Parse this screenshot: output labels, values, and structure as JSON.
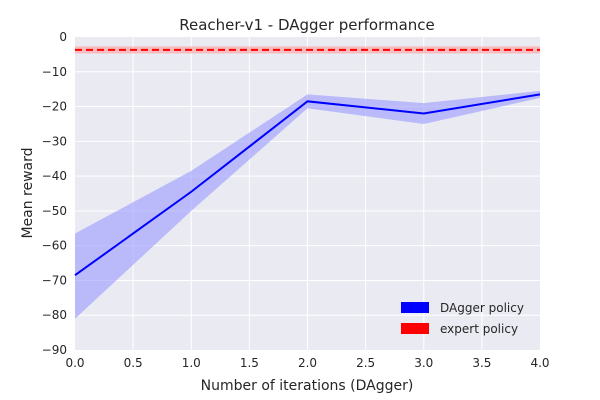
{
  "chart_data": {
    "type": "line",
    "title": "Reacher-v1 - DAgger performance",
    "xlabel": "Number of iterations (DAgger)",
    "ylabel": "Mean reward",
    "xlim": [
      0,
      4
    ],
    "ylim": [
      -90,
      0
    ],
    "xticks": [
      "0.0",
      "0.5",
      "1.0",
      "1.5",
      "2.0",
      "2.5",
      "3.0",
      "3.5",
      "4.0"
    ],
    "yticks": [
      "0",
      "−10",
      "−20",
      "−30",
      "−40",
      "−50",
      "−60",
      "−70",
      "−80",
      "−90"
    ],
    "grid": true,
    "legend_position": "lower-right",
    "series": [
      {
        "name": "DAgger policy",
        "color": "#0000ff",
        "band_color": "#9999ff",
        "x": [
          0,
          1,
          2,
          3,
          4
        ],
        "y": [
          -68.5,
          -44.5,
          -18.5,
          -22,
          -16.5
        ],
        "y_lower": [
          -81,
          -50,
          -20.5,
          -25,
          -17.5
        ],
        "y_upper": [
          -56.5,
          -38.5,
          -16.5,
          -19,
          -15.5
        ]
      },
      {
        "name": "expert policy",
        "color": "#ff0000",
        "band_color": "#ff9999",
        "style": "dashed",
        "x": [
          0,
          4
        ],
        "y": [
          -3.7,
          -3.7
        ],
        "y_lower": [
          -4.7,
          -4.7
        ],
        "y_upper": [
          -2.7,
          -2.7
        ]
      }
    ]
  }
}
